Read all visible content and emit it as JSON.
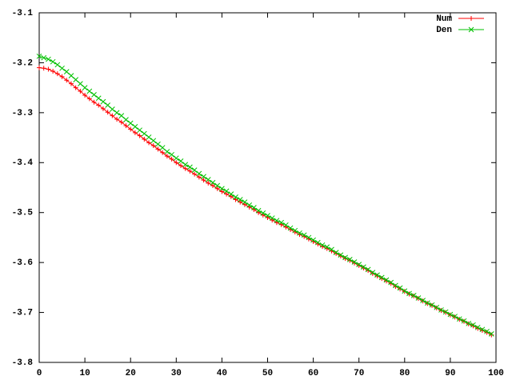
{
  "chart_data": {
    "type": "line",
    "x": [
      0,
      1,
      2,
      3,
      4,
      5,
      6,
      7,
      8,
      9,
      10,
      11,
      12,
      13,
      14,
      15,
      16,
      17,
      18,
      19,
      20,
      21,
      22,
      23,
      24,
      25,
      26,
      27,
      28,
      29,
      30,
      31,
      32,
      33,
      34,
      35,
      36,
      37,
      38,
      39,
      40,
      41,
      42,
      43,
      44,
      45,
      46,
      47,
      48,
      49,
      50,
      51,
      52,
      53,
      54,
      55,
      56,
      57,
      58,
      59,
      60,
      61,
      62,
      63,
      64,
      65,
      66,
      67,
      68,
      69,
      70,
      71,
      72,
      73,
      74,
      75,
      76,
      77,
      78,
      79,
      80,
      81,
      82,
      83,
      84,
      85,
      86,
      87,
      88,
      89,
      90,
      91,
      92,
      93,
      94,
      95,
      96,
      97,
      98,
      99
    ],
    "series": [
      {
        "name": "Num",
        "color": "#ff0000",
        "marker": "plus",
        "values": [
          -3.21,
          -3.211,
          -3.213,
          -3.217,
          -3.222,
          -3.228,
          -3.235,
          -3.242,
          -3.25,
          -3.257,
          -3.265,
          -3.272,
          -3.279,
          -3.285,
          -3.292,
          -3.299,
          -3.306,
          -3.313,
          -3.319,
          -3.326,
          -3.333,
          -3.34,
          -3.346,
          -3.353,
          -3.36,
          -3.366,
          -3.373,
          -3.38,
          -3.387,
          -3.393,
          -3.4,
          -3.406,
          -3.412,
          -3.417,
          -3.423,
          -3.429,
          -3.435,
          -3.441,
          -3.446,
          -3.452,
          -3.458,
          -3.463,
          -3.468,
          -3.474,
          -3.479,
          -3.484,
          -3.489,
          -3.494,
          -3.5,
          -3.505,
          -3.51,
          -3.515,
          -3.52,
          -3.524,
          -3.529,
          -3.534,
          -3.539,
          -3.544,
          -3.548,
          -3.553,
          -3.558,
          -3.563,
          -3.568,
          -3.572,
          -3.577,
          -3.582,
          -3.587,
          -3.592,
          -3.596,
          -3.601,
          -3.606,
          -3.611,
          -3.616,
          -3.622,
          -3.627,
          -3.632,
          -3.637,
          -3.642,
          -3.648,
          -3.653,
          -3.658,
          -3.663,
          -3.667,
          -3.672,
          -3.677,
          -3.682,
          -3.686,
          -3.691,
          -3.696,
          -3.7,
          -3.705,
          -3.709,
          -3.714,
          -3.718,
          -3.723,
          -3.727,
          -3.732,
          -3.736,
          -3.74,
          -3.745
        ]
      },
      {
        "name": "Den",
        "color": "#00c000",
        "marker": "cross",
        "values": [
          -3.187,
          -3.19,
          -3.193,
          -3.198,
          -3.204,
          -3.211,
          -3.218,
          -3.226,
          -3.234,
          -3.242,
          -3.25,
          -3.257,
          -3.264,
          -3.271,
          -3.278,
          -3.285,
          -3.293,
          -3.3,
          -3.306,
          -3.314,
          -3.321,
          -3.328,
          -3.335,
          -3.342,
          -3.349,
          -3.356,
          -3.363,
          -3.37,
          -3.378,
          -3.384,
          -3.391,
          -3.397,
          -3.404,
          -3.409,
          -3.415,
          -3.422,
          -3.428,
          -3.434,
          -3.44,
          -3.446,
          -3.452,
          -3.457,
          -3.463,
          -3.469,
          -3.474,
          -3.479,
          -3.485,
          -3.49,
          -3.496,
          -3.501,
          -3.506,
          -3.511,
          -3.516,
          -3.52,
          -3.525,
          -3.531,
          -3.536,
          -3.541,
          -3.545,
          -3.55,
          -3.555,
          -3.56,
          -3.565,
          -3.569,
          -3.574,
          -3.58,
          -3.585,
          -3.59,
          -3.594,
          -3.599,
          -3.604,
          -3.609,
          -3.614,
          -3.62,
          -3.625,
          -3.63,
          -3.635,
          -3.64,
          -3.646,
          -3.651,
          -3.657,
          -3.662,
          -3.666,
          -3.671,
          -3.676,
          -3.681,
          -3.685,
          -3.69,
          -3.695,
          -3.699,
          -3.704,
          -3.708,
          -3.713,
          -3.717,
          -3.722,
          -3.725,
          -3.73,
          -3.734,
          -3.738,
          -3.743
        ]
      }
    ],
    "xlim": [
      0,
      100
    ],
    "xticks": [
      0,
      10,
      20,
      30,
      40,
      50,
      60,
      70,
      80,
      90,
      100
    ],
    "ylim": [
      -3.8,
      -3.1
    ],
    "yticks": [
      -3.8,
      -3.7,
      -3.6,
      -3.5,
      -3.4,
      -3.3,
      -3.2,
      -3.1
    ],
    "legend": "top-right"
  }
}
